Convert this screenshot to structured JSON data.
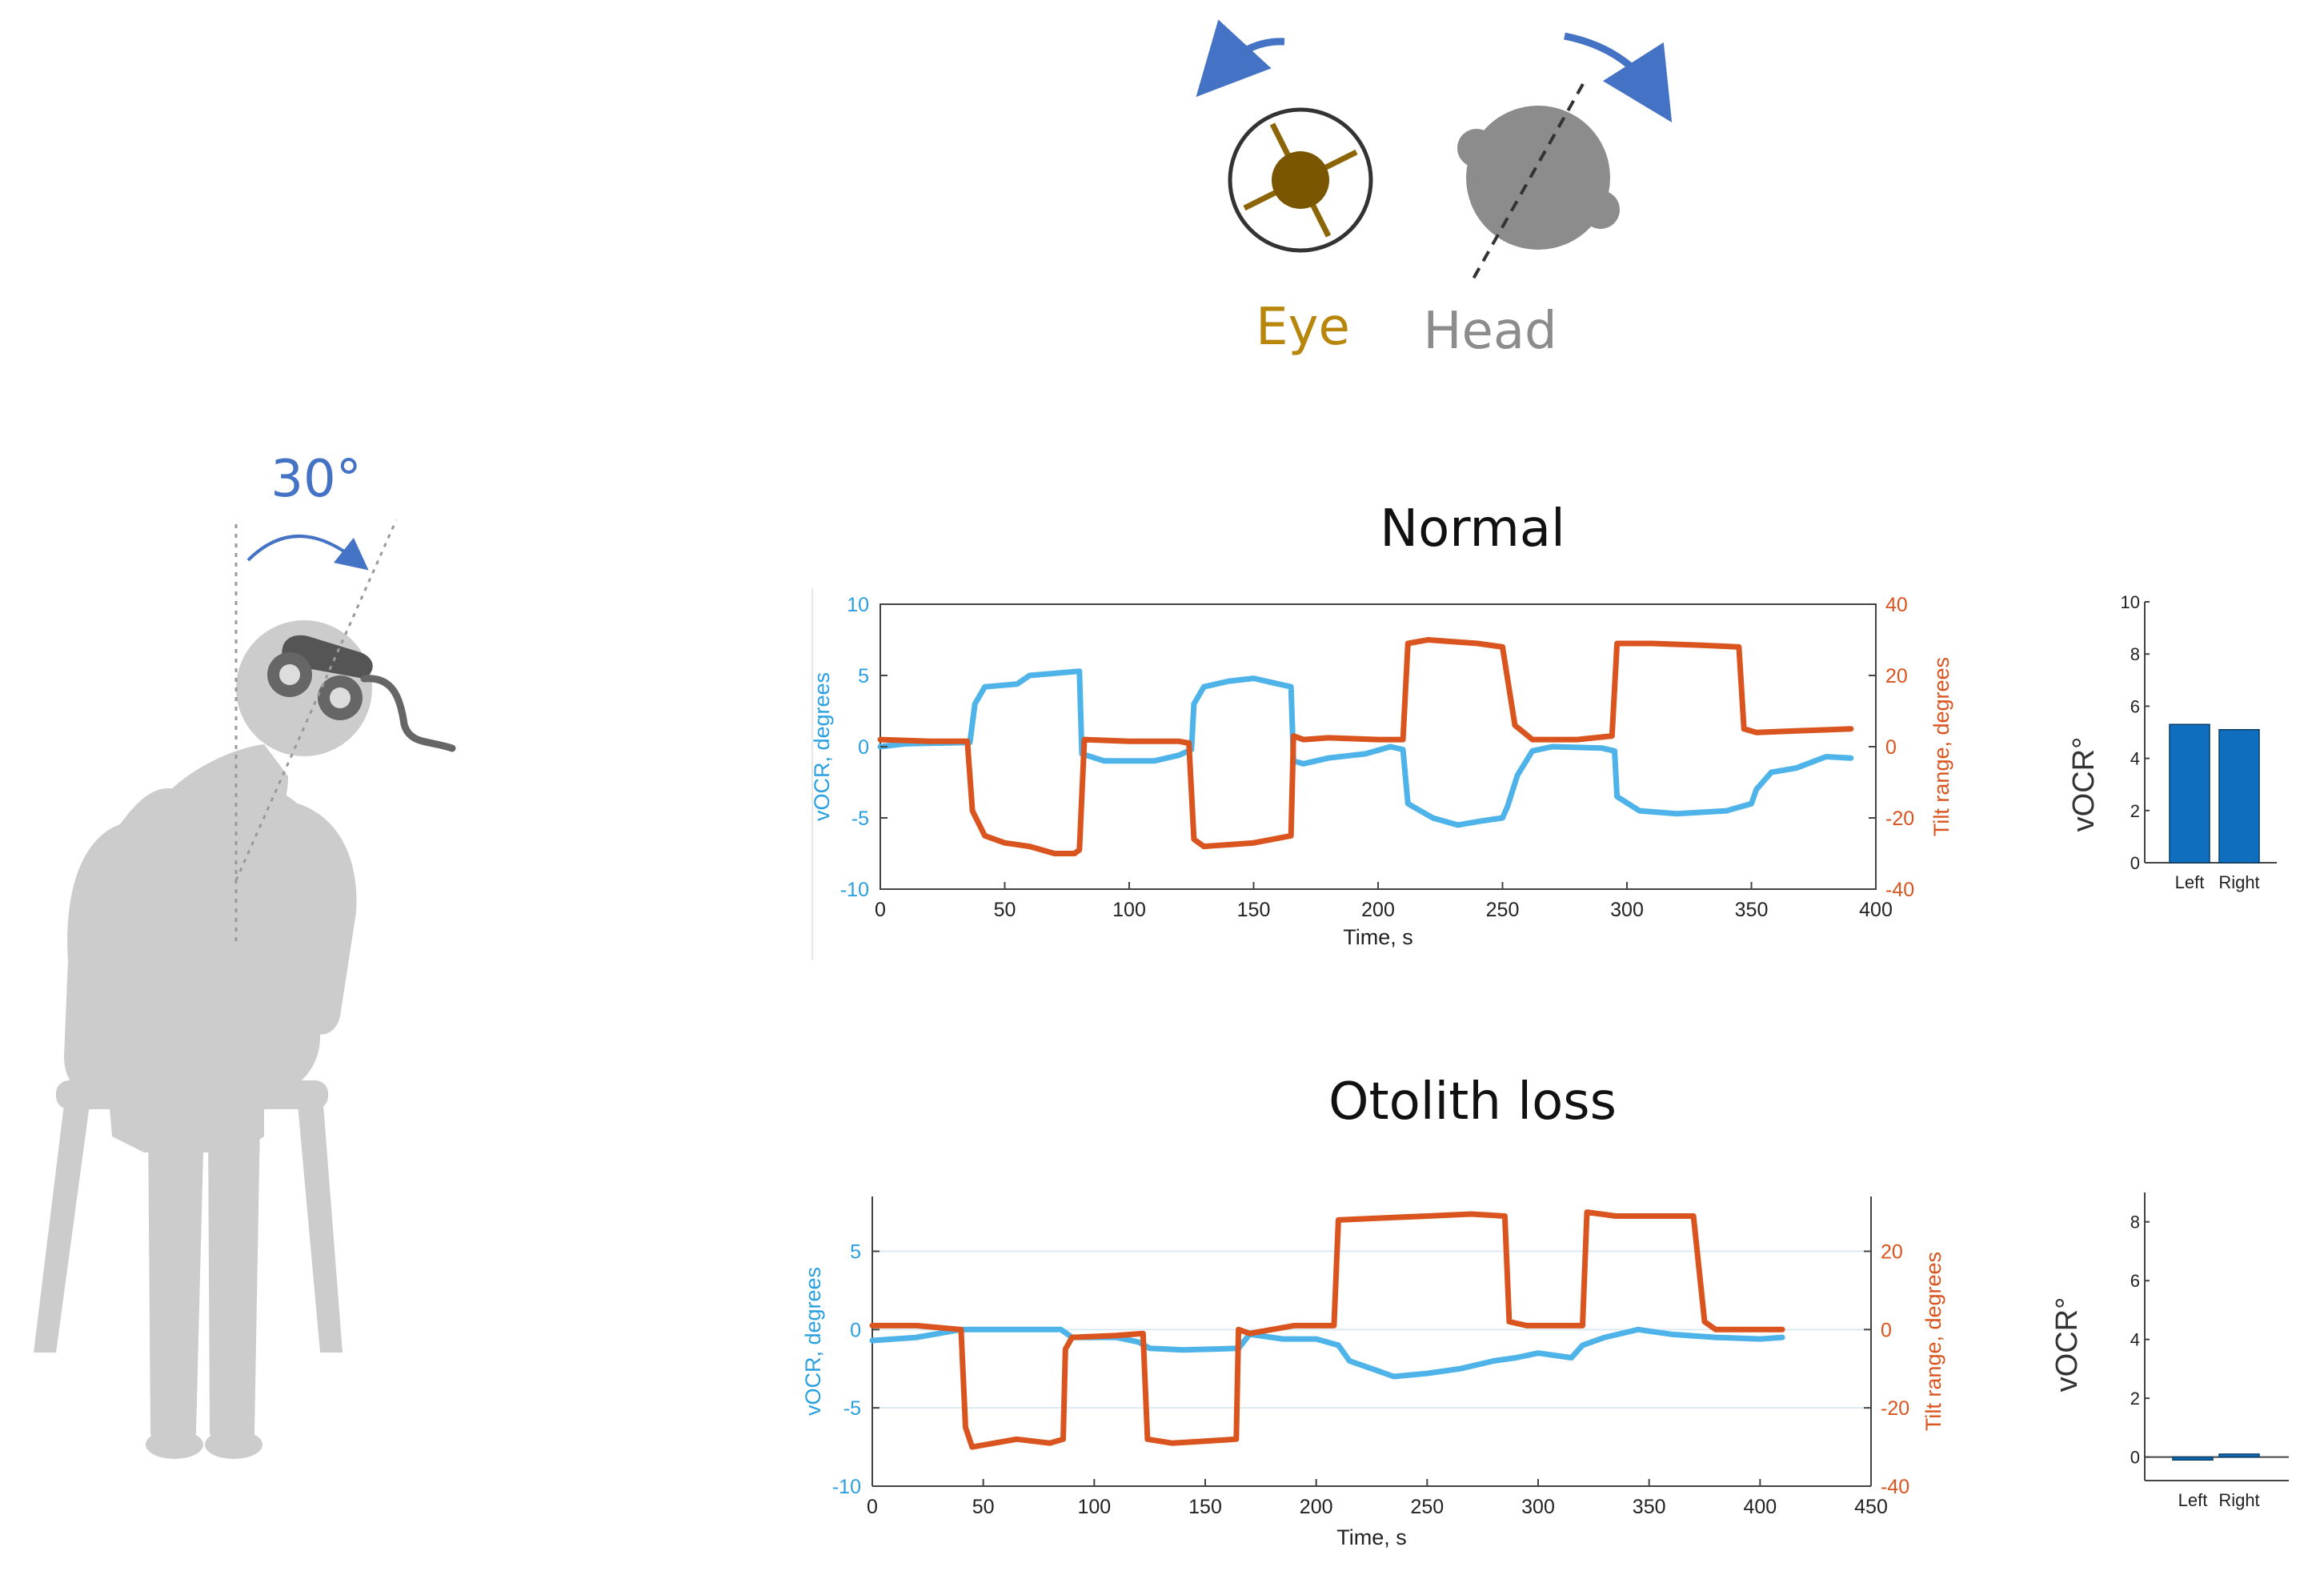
{
  "illustration": {
    "tilt_label": "30°",
    "eye_label": "Eye",
    "head_label": "Head",
    "colors": {
      "arrow": "#4472c4",
      "eye": "#b8860b",
      "head": "#8c8c8c",
      "person": "#cccccc"
    }
  },
  "colors": {
    "vocr": "#4db3e8",
    "tilt": "#d9541e",
    "bar": "#0f6fbe"
  },
  "chart_data": [
    {
      "type": "line",
      "title": "Normal",
      "xlabel": "Time, s",
      "ylabel_left": "vOCR, degrees",
      "ylabel_right": "Tilt range, degrees",
      "xlim": [
        0,
        400
      ],
      "ylim_left": [
        -10,
        10
      ],
      "ylim_right": [
        -40,
        40
      ],
      "x_ticks": [
        0,
        50,
        100,
        150,
        200,
        250,
        300,
        350,
        400
      ],
      "y_ticks_left": [
        -10,
        -5,
        0,
        5,
        10
      ],
      "y_ticks_right": [
        -40,
        -20,
        0,
        20,
        40
      ],
      "grid": false,
      "series": [
        {
          "axis": "left",
          "points": [
            [
              0,
              0
            ],
            [
              10,
              0.2
            ],
            [
              36,
              0.3
            ],
            [
              38,
              3
            ],
            [
              42,
              4.2
            ],
            [
              55,
              4.4
            ],
            [
              60,
              5
            ],
            [
              80,
              5.3
            ],
            [
              81,
              -0.5
            ],
            [
              90,
              -1
            ],
            [
              110,
              -1
            ],
            [
              120,
              -0.6
            ],
            [
              125,
              -0.2
            ],
            [
              126,
              3
            ],
            [
              130,
              4.2
            ],
            [
              140,
              4.6
            ],
            [
              150,
              4.8
            ],
            [
              160,
              4.4
            ],
            [
              165,
              4.2
            ],
            [
              166,
              -1
            ],
            [
              170,
              -1.2
            ],
            [
              180,
              -0.8
            ],
            [
              195,
              -0.5
            ],
            [
              205,
              0
            ],
            [
              210,
              -0.2
            ],
            [
              212,
              -4
            ],
            [
              222,
              -5
            ],
            [
              232,
              -5.5
            ],
            [
              242,
              -5.2
            ],
            [
              250,
              -5
            ],
            [
              252,
              -4.2
            ],
            [
              256,
              -2
            ],
            [
              262,
              -0.3
            ],
            [
              270,
              0
            ],
            [
              290,
              -0.1
            ],
            [
              295,
              -0.3
            ],
            [
              296,
              -3.5
            ],
            [
              305,
              -4.5
            ],
            [
              320,
              -4.7
            ],
            [
              340,
              -4.5
            ],
            [
              350,
              -4
            ],
            [
              352,
              -3
            ],
            [
              358,
              -1.8
            ],
            [
              368,
              -1.5
            ],
            [
              380,
              -0.7
            ],
            [
              390,
              -0.8
            ]
          ]
        },
        {
          "axis": "right",
          "points": [
            [
              0,
              2
            ],
            [
              20,
              1.5
            ],
            [
              35,
              1.5
            ],
            [
              37,
              -18
            ],
            [
              42,
              -25
            ],
            [
              50,
              -27
            ],
            [
              60,
              -28
            ],
            [
              70,
              -30
            ],
            [
              78,
              -30
            ],
            [
              80,
              -29
            ],
            [
              82,
              2
            ],
            [
              100,
              1.5
            ],
            [
              120,
              1.5
            ],
            [
              124,
              1
            ],
            [
              126,
              -26
            ],
            [
              130,
              -28
            ],
            [
              150,
              -27
            ],
            [
              165,
              -25
            ],
            [
              166,
              3
            ],
            [
              170,
              2
            ],
            [
              180,
              2.5
            ],
            [
              200,
              2
            ],
            [
              210,
              2
            ],
            [
              212,
              29
            ],
            [
              220,
              30
            ],
            [
              240,
              29
            ],
            [
              250,
              28
            ],
            [
              255,
              6
            ],
            [
              262,
              2
            ],
            [
              280,
              2
            ],
            [
              294,
              3
            ],
            [
              296,
              29
            ],
            [
              310,
              29
            ],
            [
              330,
              28.5
            ],
            [
              345,
              28
            ],
            [
              347,
              5
            ],
            [
              352,
              4
            ],
            [
              370,
              4.5
            ],
            [
              390,
              5
            ]
          ]
        }
      ]
    },
    {
      "type": "bar",
      "ylabel": "vOCR°",
      "categories": [
        "Left",
        "Right"
      ],
      "values": [
        5.3,
        5.1
      ],
      "ylim": [
        0,
        10
      ],
      "y_ticks": [
        0,
        2,
        4,
        6,
        8,
        10
      ]
    },
    {
      "type": "line",
      "title": "Otolith loss",
      "xlabel": "Time, s",
      "ylabel_left": "vOCR, degrees",
      "ylabel_right": "Tilt range, degrees",
      "xlim": [
        0,
        450
      ],
      "ylim_left": [
        -10,
        8.5
      ],
      "ylim_right": [
        -40,
        34
      ],
      "x_ticks": [
        0,
        50,
        100,
        150,
        200,
        250,
        300,
        350,
        400,
        450
      ],
      "y_ticks_left": [
        -10,
        -5,
        0,
        5
      ],
      "y_ticks_right": [
        -40,
        -20,
        0,
        20
      ],
      "grid": true,
      "series": [
        {
          "axis": "left",
          "points": [
            [
              0,
              -0.7
            ],
            [
              20,
              -0.5
            ],
            [
              40,
              0
            ],
            [
              60,
              0
            ],
            [
              85,
              0
            ],
            [
              90,
              -0.5
            ],
            [
              110,
              -0.5
            ],
            [
              120,
              -0.8
            ],
            [
              125,
              -1.2
            ],
            [
              140,
              -1.3
            ],
            [
              165,
              -1.2
            ],
            [
              170,
              -0.3
            ],
            [
              185,
              -0.6
            ],
            [
              200,
              -0.6
            ],
            [
              210,
              -1
            ],
            [
              215,
              -2
            ],
            [
              225,
              -2.5
            ],
            [
              235,
              -3
            ],
            [
              250,
              -2.8
            ],
            [
              265,
              -2.5
            ],
            [
              280,
              -2
            ],
            [
              290,
              -1.8
            ],
            [
              300,
              -1.5
            ],
            [
              315,
              -1.8
            ],
            [
              320,
              -1
            ],
            [
              330,
              -0.5
            ],
            [
              345,
              0
            ],
            [
              360,
              -0.3
            ],
            [
              380,
              -0.5
            ],
            [
              400,
              -0.6
            ],
            [
              410,
              -0.5
            ]
          ]
        },
        {
          "axis": "right",
          "points": [
            [
              0,
              1
            ],
            [
              20,
              1
            ],
            [
              40,
              0
            ],
            [
              42,
              -25
            ],
            [
              45,
              -30
            ],
            [
              55,
              -29
            ],
            [
              65,
              -28
            ],
            [
              80,
              -29
            ],
            [
              86,
              -28
            ],
            [
              87,
              -5
            ],
            [
              90,
              -2
            ],
            [
              110,
              -1.5
            ],
            [
              122,
              -1
            ],
            [
              124,
              -28
            ],
            [
              135,
              -29
            ],
            [
              150,
              -28.5
            ],
            [
              164,
              -28
            ],
            [
              165,
              0
            ],
            [
              170,
              -1
            ],
            [
              190,
              1
            ],
            [
              208,
              1
            ],
            [
              210,
              28
            ],
            [
              230,
              28.5
            ],
            [
              250,
              29
            ],
            [
              270,
              29.5
            ],
            [
              285,
              29
            ],
            [
              287,
              2
            ],
            [
              295,
              1
            ],
            [
              315,
              1
            ],
            [
              320,
              1
            ],
            [
              322,
              30
            ],
            [
              335,
              29
            ],
            [
              350,
              29
            ],
            [
              370,
              29
            ],
            [
              375,
              2
            ],
            [
              380,
              0
            ],
            [
              395,
              0
            ],
            [
              410,
              0
            ]
          ]
        }
      ]
    },
    {
      "type": "bar",
      "ylabel": "vOCR°",
      "categories": [
        "Left",
        "Right"
      ],
      "values": [
        -0.1,
        0.1
      ],
      "ylim": [
        -0.8,
        9
      ],
      "y_ticks": [
        0,
        2,
        4,
        6,
        8
      ]
    }
  ]
}
